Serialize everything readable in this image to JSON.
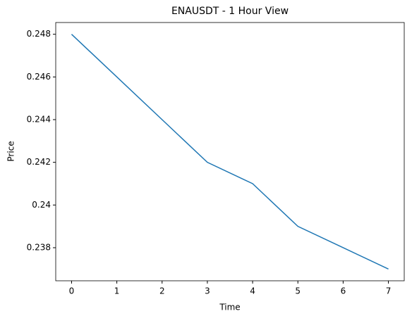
{
  "chart_data": {
    "type": "line",
    "title": "ENAUSDT - 1 Hour View",
    "x_label": "Time",
    "y_label": "Price",
    "x": [
      0,
      1,
      2,
      3,
      4,
      5,
      6,
      7
    ],
    "series": [
      {
        "color": "#1f77b4",
        "values": [
          0.248,
          0.246,
          0.244,
          0.242,
          0.241,
          0.239,
          0.238,
          0.237
        ]
      }
    ],
    "xlim": [
      -0.35,
      7.35
    ],
    "xticks": [
      0,
      1,
      2,
      3,
      4,
      5,
      6,
      7
    ],
    "ylim": [
      0.23645,
      0.24855
    ],
    "yticks": [
      0.238,
      0.24,
      0.242,
      0.244,
      0.246,
      0.248
    ],
    "grid": false
  }
}
